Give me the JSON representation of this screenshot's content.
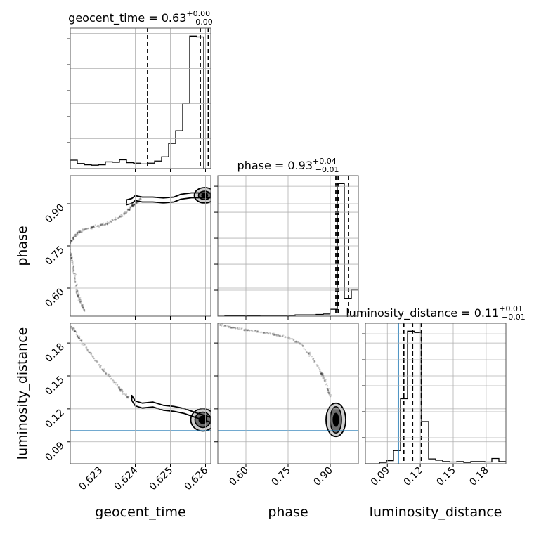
{
  "colors": {
    "truth": "#1f77b4",
    "hist": "#000000",
    "grid": "#b0b0b0",
    "contour_fill_dark": "#000000",
    "contour_fill_mid": "#6e6e6e",
    "contour_fill_light": "#cfcfcf"
  },
  "chart_data": {
    "type": "corner",
    "parameters": [
      "geocent_time",
      "phase",
      "luminosity_distance"
    ],
    "axis_labels": [
      "geocent_time",
      "phase",
      "luminosity_distance"
    ],
    "ranges": {
      "geocent_time": [
        0.62215,
        0.62615
      ],
      "phase": [
        0.5,
        1.0
      ],
      "luminosity_distance": [
        0.07,
        0.198
      ]
    },
    "ticks": {
      "geocent_time": [
        0.623,
        0.624,
        0.625,
        0.626
      ],
      "phase": [
        0.6,
        0.75,
        0.9
      ],
      "luminosity_distance": [
        0.09,
        0.12,
        0.15,
        0.18
      ]
    },
    "tick_labels": {
      "geocent_time": [
        "0.623",
        "0.624",
        "0.625",
        "0.626"
      ],
      "phase": [
        "0.60",
        "0.75",
        "0.90"
      ],
      "luminosity_distance": [
        "0.09",
        "0.12",
        "0.15",
        "0.18"
      ]
    },
    "titles": [
      {
        "param": "geocent_time",
        "name": "geocent_time",
        "median": "0.63",
        "plus": "+0.00",
        "minus": "−0.00"
      },
      {
        "param": "phase",
        "name": "phase",
        "median": "0.93",
        "plus": "+0.04",
        "minus": "−0.01"
      },
      {
        "param": "luminosity_distance",
        "name": "luminosity_distance",
        "median": "0.11",
        "plus": "+0.01",
        "minus": "−0.01"
      }
    ],
    "truths": {
      "luminosity_distance": 0.1
    },
    "quantile_lines": {
      "geocent_time": [
        0.62435,
        0.62585,
        0.62608
      ],
      "phase": [
        0.92,
        0.928,
        0.965
      ],
      "luminosity_distance": [
        0.105,
        0.113,
        0.121
      ]
    },
    "histograms": {
      "geocent_time": {
        "edges": [
          0.62215,
          0.62235,
          0.62255,
          0.62275,
          0.62295,
          0.62315,
          0.62335,
          0.62355,
          0.62375,
          0.62395,
          0.62415,
          0.62435,
          0.62455,
          0.62475,
          0.62495,
          0.62515,
          0.62535,
          0.62555,
          0.62575,
          0.62595,
          0.62615
        ],
        "counts": [
          20,
          12,
          9,
          8,
          9,
          16,
          15,
          21,
          14,
          13,
          11,
          13,
          18,
          28,
          60,
          90,
          155,
          315,
          313,
          0
        ]
      },
      "phase": {
        "edges": [
          0.5,
          0.525,
          0.55,
          0.575,
          0.6,
          0.625,
          0.65,
          0.675,
          0.7,
          0.725,
          0.75,
          0.775,
          0.8,
          0.825,
          0.85,
          0.875,
          0.9,
          0.925,
          0.95,
          0.975,
          1.0
        ],
        "counts": [
          0,
          1,
          1,
          1,
          1,
          1,
          2,
          2,
          2,
          2,
          2,
          3,
          3,
          3,
          4,
          5,
          16,
          305,
          41,
          60
        ]
      },
      "luminosity_distance": {
        "edges": [
          0.07,
          0.0764,
          0.0828,
          0.0892,
          0.0956,
          0.102,
          0.1084,
          0.1148,
          0.1212,
          0.1276,
          0.134,
          0.1404,
          0.1468,
          0.1532,
          0.1596,
          0.166,
          0.1724,
          0.1788,
          0.1852,
          0.1916,
          0.198
        ],
        "counts": [
          0,
          0,
          3,
          7,
          30,
          148,
          302,
          299,
          96,
          11,
          8,
          5,
          4,
          5,
          3,
          5,
          5,
          4,
          12,
          5
        ]
      }
    },
    "scatter_paths": {
      "phase_vs_geocent_time": {
        "x": [
          0.62215,
          0.62225,
          0.6224,
          0.6226,
          0.6229,
          0.6232,
          0.6235,
          0.62375,
          0.6239,
          0.624,
          0.62415
        ],
        "y": [
          0.76,
          0.78,
          0.8,
          0.81,
          0.82,
          0.83,
          0.85,
          0.87,
          0.89,
          0.9,
          0.92
        ]
      },
      "phase_vs_geocent_time_tail": {
        "x": [
          0.62215,
          0.6222,
          0.6223,
          0.62235,
          0.62245,
          0.62255
        ],
        "y": [
          0.74,
          0.69,
          0.63,
          0.58,
          0.55,
          0.52
        ]
      },
      "luminosity_distance_vs_geocent_time": {
        "x": [
          0.62215,
          0.6223,
          0.6225,
          0.6228,
          0.6231,
          0.6234,
          0.6236,
          0.6238
        ],
        "y": [
          0.195,
          0.19,
          0.18,
          0.167,
          0.155,
          0.145,
          0.137,
          0.13
        ]
      },
      "luminosity_distance_vs_phase": {
        "x": [
          0.5,
          0.55,
          0.6,
          0.65,
          0.7,
          0.75,
          0.8,
          0.84,
          0.87,
          0.89,
          0.9
        ],
        "y": [
          0.197,
          0.194,
          0.192,
          0.19,
          0.188,
          0.185,
          0.178,
          0.165,
          0.152,
          0.14,
          0.13
        ]
      }
    },
    "contour_paths": {
      "phase_vs_geocent_time": {
        "x": [
          0.62375,
          0.6239,
          0.624,
          0.6242,
          0.6245,
          0.6248,
          0.6251,
          0.6253,
          0.6256,
          0.62615
        ],
        "y": [
          0.905,
          0.91,
          0.92,
          0.915,
          0.915,
          0.912,
          0.915,
          0.925,
          0.93,
          0.93
        ]
      },
      "luminosity_distance_vs_geocent_time": {
        "x": [
          0.6239,
          0.624,
          0.6242,
          0.6245,
          0.6248,
          0.6251,
          0.6254,
          0.62575,
          0.62615
        ],
        "y": [
          0.13,
          0.125,
          0.123,
          0.124,
          0.121,
          0.12,
          0.118,
          0.114,
          0.11
        ]
      }
    },
    "dense_cores": {
      "phase_vs_geocent_time": {
        "x": [
          0.6258,
          0.62615
        ],
        "y": [
          0.915,
          0.945
        ]
      },
      "luminosity_distance_vs_geocent_time": {
        "x": [
          0.6257,
          0.62615
        ],
        "y": [
          0.103,
          0.117
        ]
      },
      "luminosity_distance_vs_phase": {
        "x": [
          0.9,
          0.94
        ],
        "y": [
          0.098,
          0.122
        ]
      }
    }
  }
}
